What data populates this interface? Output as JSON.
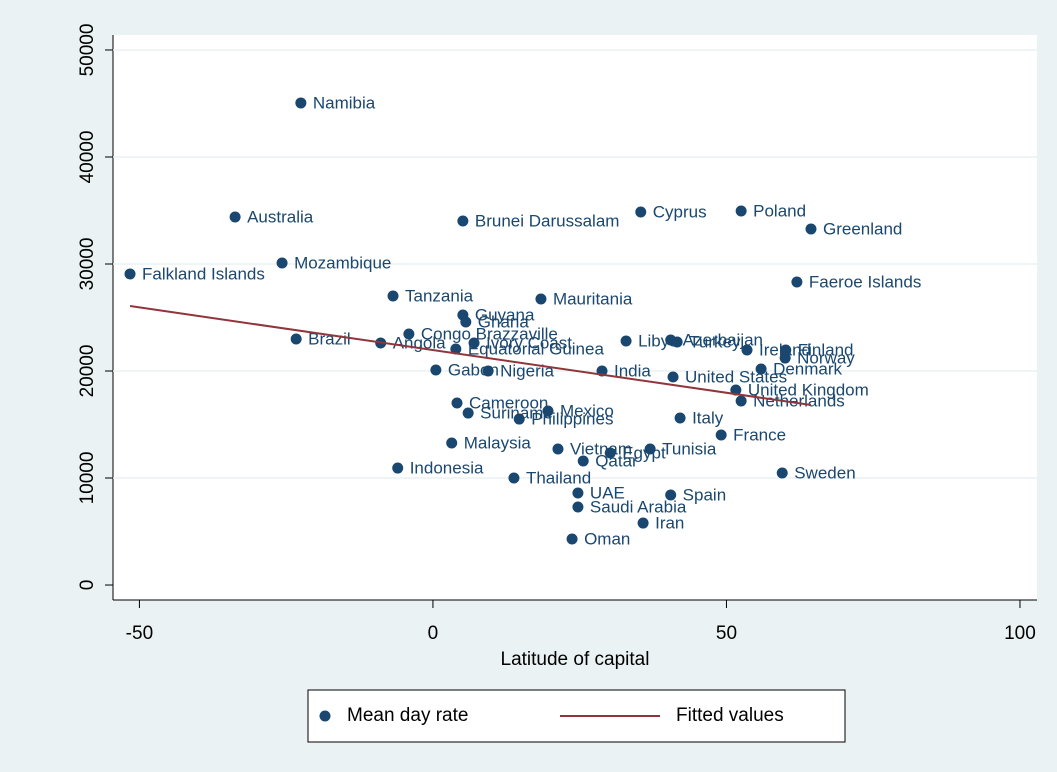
{
  "chart_data": {
    "type": "scatter",
    "x_label": "Latitude of capital",
    "xlim": [
      -54.5,
      102.9
    ],
    "xticks": [
      -50,
      0,
      50,
      100
    ],
    "ylim": [
      -1400,
      51400
    ],
    "yticks": [
      0,
      10000,
      20000,
      30000,
      40000,
      50000
    ],
    "grid": true,
    "legend": "bottom",
    "series": [
      {
        "name": "Mean day rate",
        "type": "scatter",
        "color": "#1a476f",
        "labels": [
          "Namibia",
          "Australia",
          "Falkland Islands",
          "Mozambique",
          "Brunei Darussalam",
          "Cyprus",
          "Poland",
          "Greenland",
          "Faeroe Islands",
          "Tanzania",
          "Mauritania",
          "Guyana",
          "Ghana",
          "Brazil",
          "Congo Brazzaville",
          "Angola",
          "Ivory Coast",
          "Equatorial Guinea",
          "Libya",
          "Azerbaijan",
          "Turkey",
          "Ireland",
          "Finland",
          "Norway",
          "Denmark",
          "Gabon",
          "Nigeria",
          "India",
          "United States",
          "United Kingdom",
          "Netherlands",
          "Cameroon",
          "Suriname",
          "Mexico",
          "Philippines",
          "Italy",
          "France",
          "Malaysia",
          "Vietnam",
          "Egypt",
          "Tunisia",
          "Qatar",
          "Sweden",
          "Indonesia",
          "Thailand",
          "UAE",
          "Spain",
          "Saudi Arabia",
          "Iran",
          "Oman"
        ],
        "x": [
          -22.5,
          -33.7,
          -51.6,
          -25.7,
          5.1,
          35.4,
          52.5,
          64.4,
          62.0,
          -6.8,
          18.4,
          5.1,
          5.6,
          -23.3,
          -4.1,
          -8.9,
          7.0,
          3.9,
          32.9,
          40.5,
          41.6,
          53.5,
          60.1,
          60.0,
          55.9,
          0.5,
          9.4,
          28.8,
          40.9,
          51.6,
          52.5,
          4.1,
          6.0,
          19.6,
          14.7,
          42.1,
          49.1,
          3.2,
          21.3,
          30.2,
          37.0,
          25.6,
          59.5,
          -6.0,
          13.8,
          24.7,
          40.5,
          24.7,
          35.8,
          23.7
        ],
        "values": [
          45050,
          34390,
          29070,
          30090,
          34020,
          34860,
          34950,
          33270,
          28320,
          27010,
          26730,
          25230,
          24580,
          22990,
          23460,
          22620,
          22620,
          22060,
          22800,
          22900,
          22710,
          21960,
          21960,
          21210,
          20190,
          20090,
          20000,
          20000,
          19440,
          18220,
          17200,
          17010,
          16070,
          16260,
          15510,
          15610,
          14020,
          13270,
          12710,
          12340,
          12710,
          11590,
          10470,
          10930,
          10000,
          8600,
          8410,
          7290,
          5790,
          4300
        ]
      },
      {
        "name": "Fitted values",
        "type": "line",
        "color": "#90353b",
        "x": [
          -51.6,
          64.4
        ],
        "values": [
          26070,
          16820
        ]
      }
    ]
  }
}
